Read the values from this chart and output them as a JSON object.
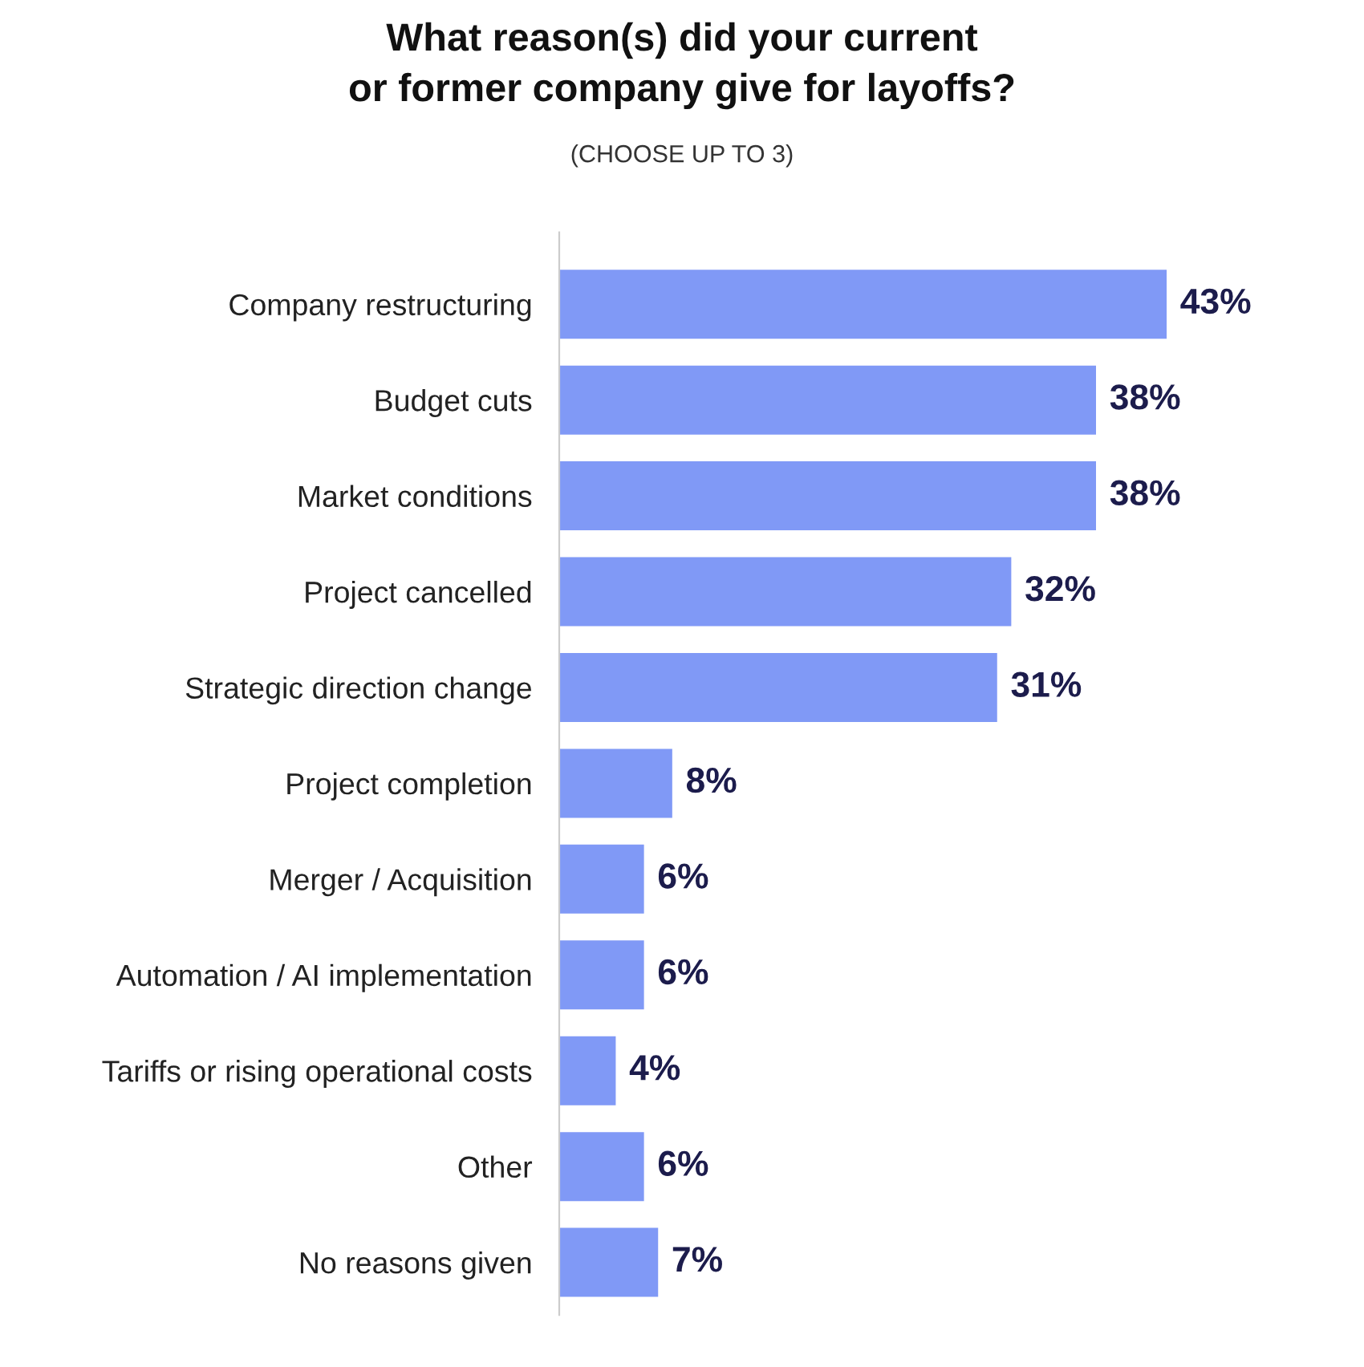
{
  "chart_data": {
    "type": "bar",
    "orientation": "horizontal",
    "title": "What reason(s) did your current\nor former company give for layoffs?",
    "subtitle": "(CHOOSE UP TO 3)",
    "categories": [
      "Company restructuring",
      "Budget cuts",
      "Market conditions",
      "Project cancelled",
      "Strategic direction change",
      "Project completion",
      "Merger / Acquisition",
      "Automation / AI implementation",
      "Tariffs or rising operational costs",
      "Other",
      "No reasons given"
    ],
    "values": [
      43,
      38,
      38,
      32,
      31,
      8,
      6,
      6,
      4,
      6,
      7
    ],
    "value_labels": [
      "43%",
      "38%",
      "38%",
      "32%",
      "31%",
      "8%",
      "6%",
      "6%",
      "4%",
      "6%",
      "7%"
    ],
    "color": "#8099f6",
    "tick_labels": "y",
    "grid": false,
    "legend": false
  }
}
